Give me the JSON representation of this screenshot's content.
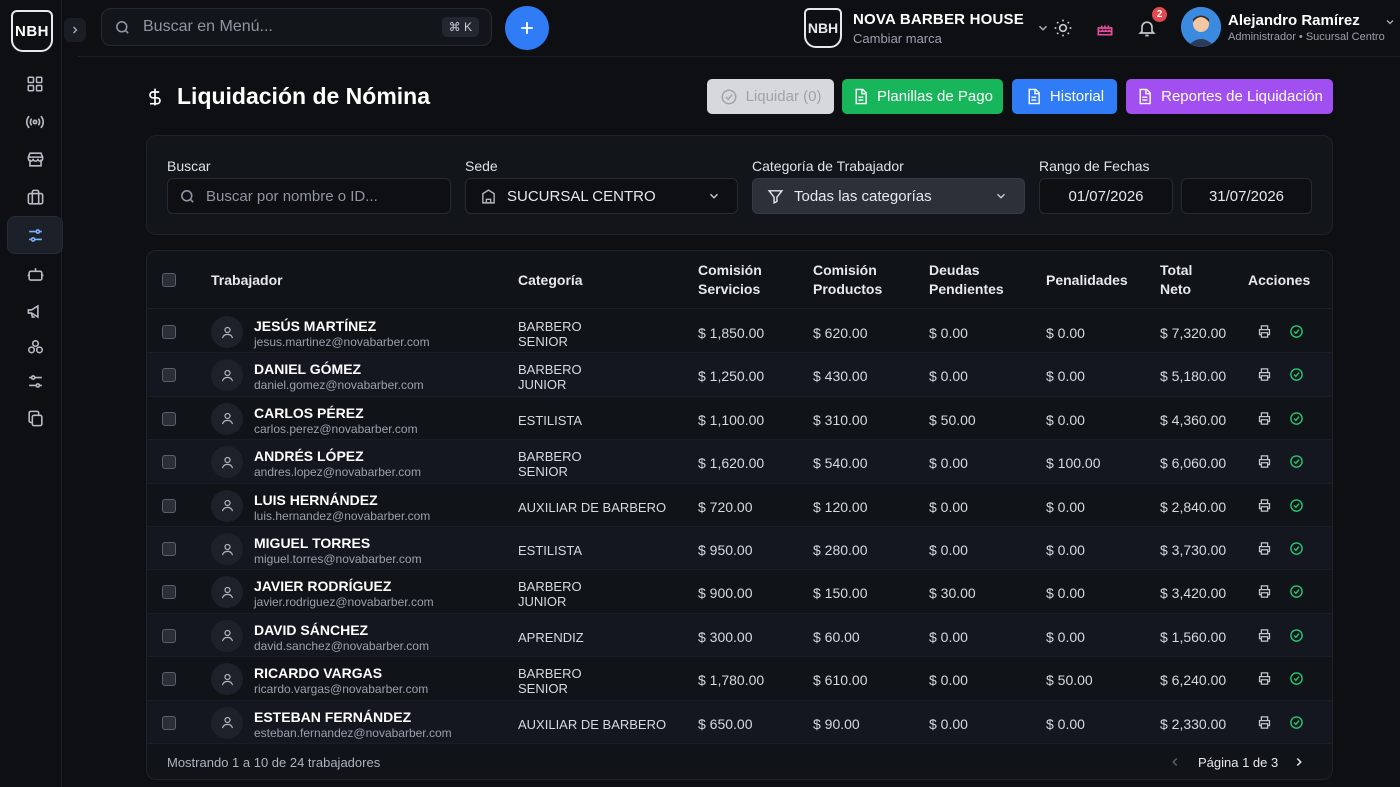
{
  "brand_logo_text": "NBH",
  "topbar": {
    "search_placeholder": "Buscar en Menú...",
    "shortcut": "⌘ K",
    "brand_name": "NOVA BARBER HOUSE",
    "brand_sub": "Cambiar marca",
    "notifications_count": "2",
    "user_name": "Alejandro Ramírez",
    "user_role": "Administrador  •  Sucursal Centro"
  },
  "sidebar": {
    "items": [
      {
        "icon": "dashboard-icon"
      },
      {
        "icon": "broadcast-icon"
      },
      {
        "icon": "store-icon"
      },
      {
        "icon": "briefcase-icon"
      },
      {
        "icon": "sliders-icon",
        "active": true
      },
      {
        "icon": "robot-icon"
      },
      {
        "icon": "megaphone-icon"
      },
      {
        "icon": "molecule-icon"
      },
      {
        "icon": "settings-sliders-icon"
      },
      {
        "icon": "copy-icon"
      }
    ]
  },
  "page": {
    "title": "Liquidación de Nómina",
    "buttons": {
      "liquidar": "Liquidar (0)",
      "planillas": "Planillas de Pago",
      "historial": "Historial",
      "reportes": "Reportes de Liquidación"
    }
  },
  "filters": {
    "search_label": "Buscar",
    "search_placeholder": "Buscar por nombre o ID...",
    "sede_label": "Sede",
    "sede_value": "SUCURSAL CENTRO",
    "category_label": "Categoría de Trabajador",
    "category_value": "Todas las categorías",
    "date_label": "Rango de Fechas",
    "date_from": "01/07/2026",
    "date_to": "31/07/2026"
  },
  "table": {
    "headers": {
      "worker": "Trabajador",
      "category": "Categoría",
      "com_serv_1": "Comisión",
      "com_serv_2": "Servicios",
      "com_prod_1": "Comisión",
      "com_prod_2": "Productos",
      "debts_1": "Deudas",
      "debts_2": "Pendientes",
      "penalties": "Penalidades",
      "total_1": "Total",
      "total_2": "Neto",
      "actions": "Acciones"
    },
    "rows": [
      {
        "name": "JESÚS MARTÍNEZ",
        "email": "jesus.martinez@novabarber.com",
        "cat1": "BARBERO",
        "cat2": "SENIOR",
        "serv": "$ 1,850.00",
        "prod": "$ 620.00",
        "debt": "$ 0.00",
        "pen": "$ 0.00",
        "total": "$ 7,320.00"
      },
      {
        "name": "DANIEL GÓMEZ",
        "email": "daniel.gomez@novabarber.com",
        "cat1": "BARBERO",
        "cat2": "JUNIOR",
        "serv": "$ 1,250.00",
        "prod": "$ 430.00",
        "debt": "$ 0.00",
        "pen": "$ 0.00",
        "total": "$ 5,180.00"
      },
      {
        "name": "CARLOS PÉREZ",
        "email": "carlos.perez@novabarber.com",
        "cat1": "ESTILISTA",
        "cat2": "",
        "serv": "$ 1,100.00",
        "prod": "$ 310.00",
        "debt": "$ 50.00",
        "pen": "$ 0.00",
        "total": "$ 4,360.00"
      },
      {
        "name": "ANDRÉS LÓPEZ",
        "email": "andres.lopez@novabarber.com",
        "cat1": "BARBERO",
        "cat2": "SENIOR",
        "serv": "$ 1,620.00",
        "prod": "$ 540.00",
        "debt": "$ 0.00",
        "pen": "$ 100.00",
        "total": "$ 6,060.00"
      },
      {
        "name": "LUIS HERNÁNDEZ",
        "email": "luis.hernandez@novabarber.com",
        "cat1": "AUXILIAR DE BARBERO",
        "cat2": "",
        "serv": "$ 720.00",
        "prod": "$ 120.00",
        "debt": "$ 0.00",
        "pen": "$ 0.00",
        "total": "$ 2,840.00"
      },
      {
        "name": "MIGUEL TORRES",
        "email": "miguel.torres@novabarber.com",
        "cat1": "ESTILISTA",
        "cat2": "",
        "serv": "$ 950.00",
        "prod": "$ 280.00",
        "debt": "$ 0.00",
        "pen": "$ 0.00",
        "total": "$ 3,730.00"
      },
      {
        "name": "JAVIER RODRÍGUEZ",
        "email": "javier.rodriguez@novabarber.com",
        "cat1": "BARBERO",
        "cat2": "JUNIOR",
        "serv": "$ 900.00",
        "prod": "$ 150.00",
        "debt": "$ 30.00",
        "pen": "$ 0.00",
        "total": "$ 3,420.00"
      },
      {
        "name": "DAVID SÁNCHEZ",
        "email": "david.sanchez@novabarber.com",
        "cat1": "APRENDIZ",
        "cat2": "",
        "serv": "$ 300.00",
        "prod": "$ 60.00",
        "debt": "$ 0.00",
        "pen": "$ 0.00",
        "total": "$ 1,560.00"
      },
      {
        "name": "RICARDO VARGAS",
        "email": "ricardo.vargas@novabarber.com",
        "cat1": "BARBERO",
        "cat2": "SENIOR",
        "serv": "$ 1,780.00",
        "prod": "$ 610.00",
        "debt": "$ 0.00",
        "pen": "$ 50.00",
        "total": "$ 6,240.00"
      },
      {
        "name": "ESTEBAN FERNÁNDEZ",
        "email": "esteban.fernandez@novabarber.com",
        "cat1": "AUXILIAR DE BARBERO",
        "cat2": "",
        "serv": "$ 650.00",
        "prod": "$ 90.00",
        "debt": "$ 0.00",
        "pen": "$ 0.00",
        "total": "$ 2,330.00"
      }
    ],
    "footer": {
      "showing": "Mostrando 1 a 10 de 24 trabajadores",
      "page": "Página 1 de 3"
    }
  },
  "colors": {
    "accent_blue": "#2f7cf6",
    "green": "#18b65b",
    "purple": "#a14ff0",
    "check_green": "#28c76f",
    "badge_red": "#e5484d"
  }
}
